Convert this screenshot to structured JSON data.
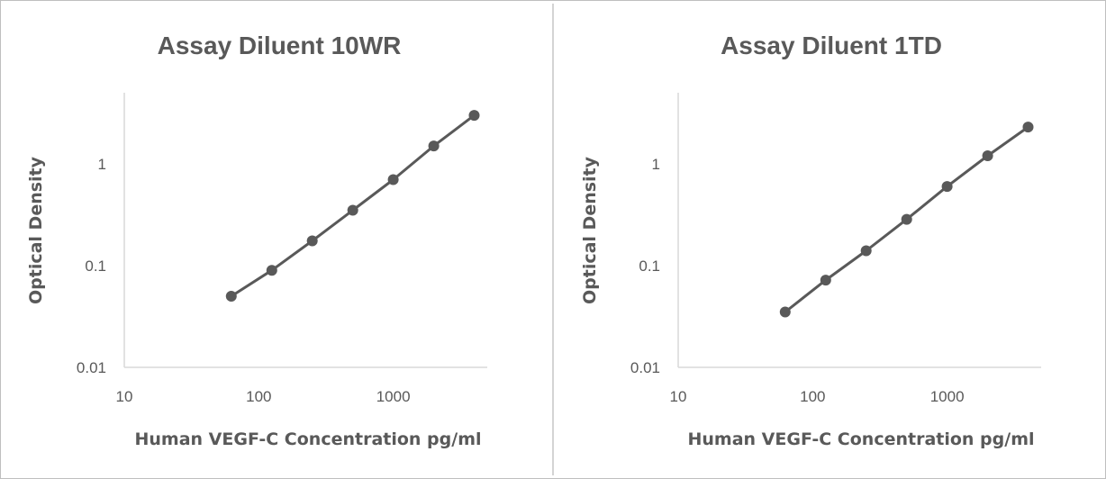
{
  "chart_data": [
    {
      "type": "line",
      "title": "Assay Diluent 10WR",
      "xlabel": "Human VEGF-C Concentration pg/ml",
      "ylabel": "Optical Density",
      "x_scale": "log",
      "y_scale": "log",
      "xlim": [
        10,
        5000
      ],
      "ylim": [
        0.01,
        5
      ],
      "x_ticks": [
        "10",
        "100",
        "1000"
      ],
      "y_ticks": [
        "0.01",
        "0.1",
        "1"
      ],
      "grid": false,
      "line_color": "#595959",
      "series": [
        {
          "x": [
            62.5,
            125,
            250,
            500,
            1000,
            2000,
            4000
          ],
          "y": [
            0.05,
            0.09,
            0.175,
            0.35,
            0.7,
            1.5,
            3.0
          ]
        }
      ]
    },
    {
      "type": "line",
      "title": "Assay Diluent 1TD",
      "xlabel": "Human VEGF-C Concentration pg/ml",
      "ylabel": "Optical Density",
      "x_scale": "log",
      "y_scale": "log",
      "xlim": [
        10,
        5000
      ],
      "ylim": [
        0.01,
        5
      ],
      "x_ticks": [
        "10",
        "100",
        "1000"
      ],
      "y_ticks": [
        "0.01",
        "0.1",
        "1"
      ],
      "grid": false,
      "line_color": "#595959",
      "series": [
        {
          "x": [
            62.5,
            125,
            250,
            500,
            1000,
            2000,
            4000
          ],
          "y": [
            0.035,
            0.072,
            0.14,
            0.285,
            0.6,
            1.2,
            2.3
          ]
        }
      ]
    }
  ]
}
